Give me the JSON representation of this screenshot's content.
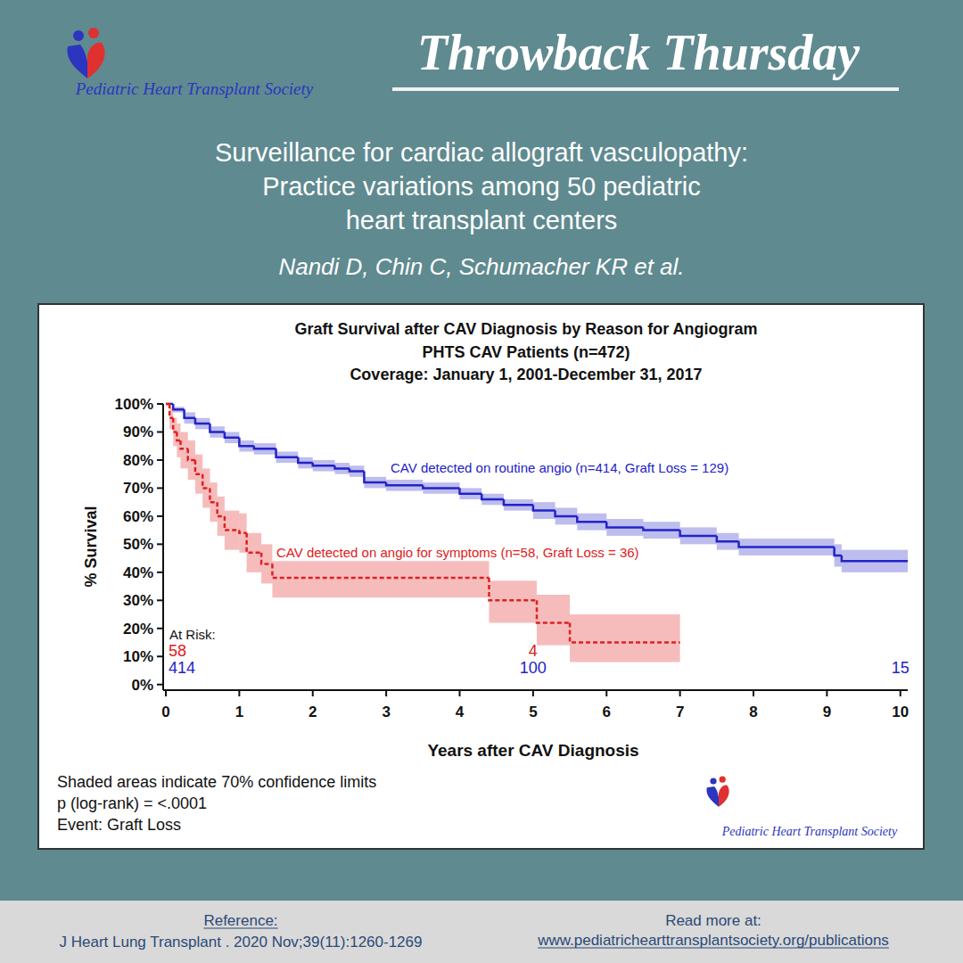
{
  "page": {
    "logo_text": "Pediatric Heart Transplant Society",
    "banner": "Throwback Thursday",
    "title_lines": [
      "Surveillance for cardiac allograft vasculopathy:",
      "Practice variations among 50 pediatric",
      "heart transplant centers"
    ],
    "authors": "Nandi D, Chin C, Schumacher KR et al.",
    "reference_label": "Reference:",
    "reference": "J Heart Lung Transplant . 2020 Nov;39(11):1260-1269",
    "read_more_label": "Read more at:",
    "read_more_url": "www.pediatrichearttransplantsociety.org/publications"
  },
  "chart_data": {
    "type": "step",
    "title": "Graft Survival after CAV Diagnosis by Reason for Angiogram",
    "subtitle": [
      "PHTS CAV Patients (n=472)",
      "Coverage: January 1, 2001-December 31, 2017"
    ],
    "xlabel": "Years after CAV Diagnosis",
    "ylabel": "% Survival",
    "xlim": [
      0,
      10.1
    ],
    "ylim": [
      -2,
      100
    ],
    "xticks": [
      0,
      1,
      2,
      3,
      4,
      5,
      6,
      7,
      8,
      9,
      10
    ],
    "yticks": [
      {
        "value": 0,
        "label": "0%"
      },
      {
        "value": 10,
        "label": "10%"
      },
      {
        "value": 20,
        "label": "20%"
      },
      {
        "value": 30,
        "label": "30%"
      },
      {
        "value": 40,
        "label": "40%"
      },
      {
        "value": 50,
        "label": "50%"
      },
      {
        "value": 60,
        "label": "60%"
      },
      {
        "value": 70,
        "label": "70%"
      },
      {
        "value": 80,
        "label": "80%"
      },
      {
        "value": 90,
        "label": "90%"
      },
      {
        "value": 100,
        "label": "100%"
      }
    ],
    "grid": false,
    "notes": [
      "Shaded areas indicate 70% confidence limits",
      "p (log-rank) = <.0001",
      "Event: Graft Loss"
    ],
    "at_risk_label": "At Risk:",
    "series": [
      {
        "name": "CAV detected on routine angio (n=414, Graft Loss = 129)",
        "color": "#2323c8",
        "line_style": "solid",
        "x": [
          0,
          0.1,
          0.25,
          0.4,
          0.6,
          0.8,
          1.0,
          1.2,
          1.5,
          1.8,
          2.0,
          2.3,
          2.5,
          2.7,
          3.0,
          3.5,
          4.0,
          4.3,
          4.6,
          5.0,
          5.3,
          5.6,
          6.0,
          6.5,
          7.0,
          7.5,
          7.8,
          9.1,
          9.2,
          10.1
        ],
        "values": [
          100,
          98,
          95,
          93,
          90,
          88,
          85,
          84,
          81,
          79,
          78,
          77,
          76,
          72,
          71,
          70,
          68,
          66,
          64,
          62,
          60,
          58,
          56,
          55,
          53,
          51,
          49,
          46,
          44,
          44
        ],
        "lower": [
          100,
          97,
          93,
          91,
          88,
          86,
          83,
          82,
          79,
          77,
          76,
          75,
          74,
          70,
          69,
          68,
          66,
          64,
          62,
          59,
          57,
          55,
          53,
          52,
          50,
          48,
          46,
          42,
          40,
          40
        ],
        "upper": [
          100,
          99,
          97,
          95,
          92,
          90,
          87,
          86,
          83,
          81,
          80,
          79,
          78,
          74,
          73,
          72,
          70,
          68,
          66,
          65,
          63,
          61,
          59,
          58,
          56,
          54,
          52,
          50,
          48,
          48
        ],
        "at_risk": {
          "x": [
            0,
            5,
            10
          ],
          "values": [
            414,
            100,
            15
          ]
        }
      },
      {
        "name": "CAV detected on angio for symptoms (n=58, Graft Loss = 36)",
        "color": "#e02020",
        "line_style": "dashed",
        "x": [
          0,
          0.05,
          0.1,
          0.15,
          0.2,
          0.3,
          0.4,
          0.5,
          0.6,
          0.7,
          0.8,
          1.0,
          1.1,
          1.3,
          1.45,
          4.4,
          5.05,
          5.5,
          7.0
        ],
        "values": [
          100,
          95,
          90,
          87,
          84,
          80,
          75,
          70,
          65,
          60,
          55,
          54,
          47,
          43,
          38,
          30,
          22,
          15,
          15
        ],
        "lower": [
          100,
          91,
          85,
          81,
          77,
          73,
          68,
          63,
          58,
          53,
          48,
          47,
          40,
          36,
          31,
          22,
          14,
          8,
          8
        ],
        "upper": [
          100,
          99,
          95,
          93,
          90,
          87,
          82,
          77,
          72,
          67,
          62,
          61,
          54,
          50,
          44,
          37,
          32,
          25,
          25
        ],
        "at_risk": {
          "x": [
            0,
            5
          ],
          "values": [
            58,
            4
          ]
        }
      }
    ]
  }
}
